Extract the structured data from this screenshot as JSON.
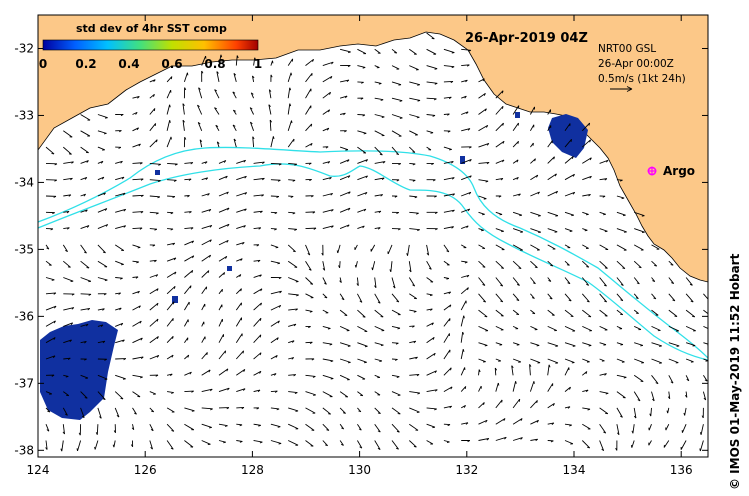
{
  "title": "26-Apr-2019 04Z",
  "colorbar": {
    "label": "std dev of 4hr SST comp",
    "ticks": [
      "0",
      "0.2",
      "0.4",
      "0.6",
      "0.8",
      "1"
    ],
    "colors": [
      "#0000a0",
      "#0060ff",
      "#00c0ff",
      "#40e080",
      "#c0e000",
      "#ffc000",
      "#ff4000",
      "#a00000"
    ]
  },
  "current_info": {
    "line1": "NRT00 GSL",
    "line2": "26-Apr 00:00Z",
    "line3": "0.5m/s (1kt 24h)"
  },
  "argo": {
    "label": "Argo",
    "marker_color": "#ff00ff"
  },
  "credit": "© IMOS 01-May-2019 11:52 Hobart",
  "axes": {
    "x_ticks": [
      "124",
      "126",
      "128",
      "130",
      "132",
      "134",
      "136"
    ],
    "y_ticks": [
      "-32",
      "-33",
      "-34",
      "-35",
      "-36",
      "-37",
      "-38"
    ],
    "lon_range": [
      124,
      136.5
    ],
    "lat_range": [
      -31.5,
      -38.1
    ]
  },
  "colors": {
    "land": "#fcc888",
    "sst_patch": "#1030a0",
    "front_line": "#30e0e8",
    "arrow": "#000000"
  }
}
